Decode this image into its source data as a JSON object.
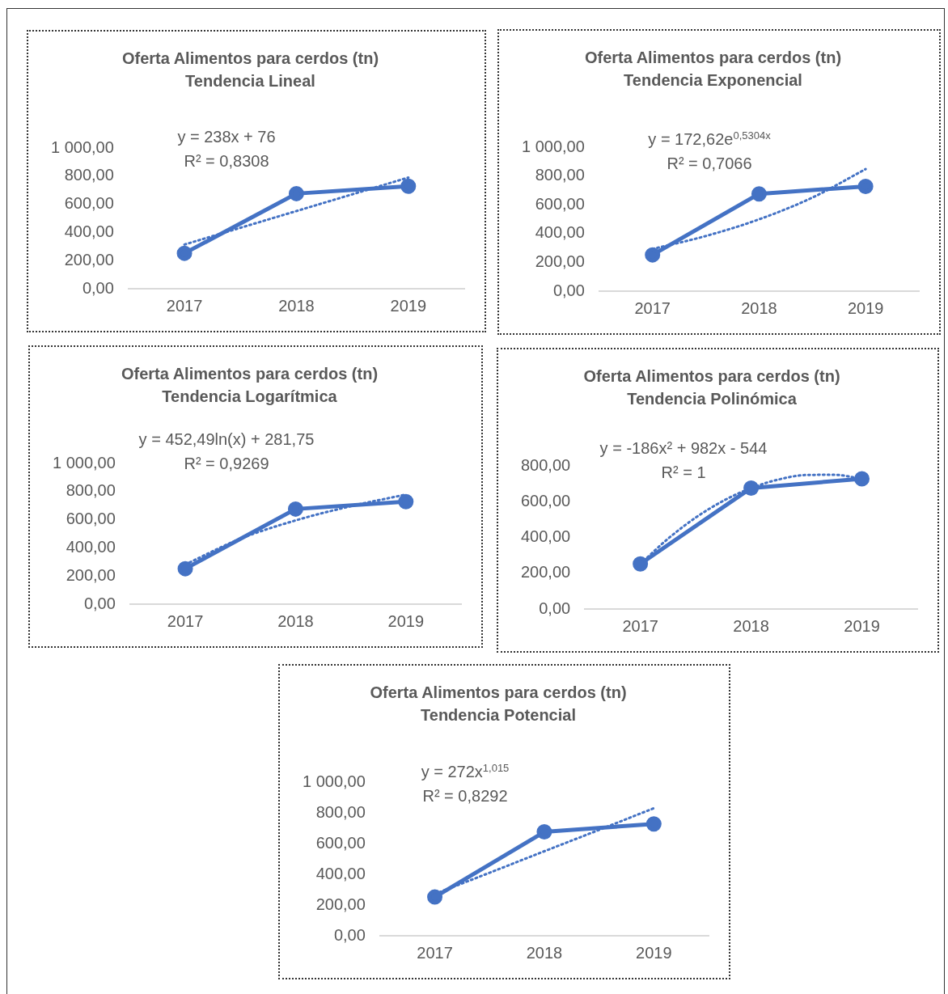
{
  "chart_data": [
    {
      "type": "line",
      "title": "Oferta Alimentos para cerdos (tn)",
      "subtitle": "Tendencia Lineal",
      "x": [
        2017,
        2018,
        2019
      ],
      "xlim": [
        2016.5,
        2019.5
      ],
      "xticks": [
        2017,
        2018,
        2019
      ],
      "ylim": [
        0,
        1000
      ],
      "yticks": [
        {
          "value": 0,
          "label": "0,00"
        },
        {
          "value": 200,
          "label": "200,00"
        },
        {
          "value": 400,
          "label": "400,00"
        },
        {
          "value": 600,
          "label": "600,00"
        },
        {
          "value": 800,
          "label": "800,00"
        },
        {
          "value": 1000,
          "label": "1 000,00"
        }
      ],
      "grid": false,
      "legend": false,
      "series": [
        {
          "color": "#4472c4",
          "marker": "circle",
          "line_style": "solid",
          "values": [
            252,
            676,
            728
          ]
        },
        {
          "color": "#4472c4",
          "marker": "none",
          "line_style": "dotted",
          "x": [
            2017,
            2018,
            2019
          ],
          "values": [
            314,
            552,
            790
          ]
        }
      ],
      "annotations": [
        "y = 238x + 76",
        "R² = 0,8308"
      ]
    },
    {
      "type": "line",
      "title": "Oferta Alimentos para cerdos (tn)",
      "subtitle": "Tendencia Exponencial",
      "x": [
        2017,
        2018,
        2019
      ],
      "xlim": [
        2016.5,
        2019.5
      ],
      "xticks": [
        2017,
        2018,
        2019
      ],
      "ylim": [
        0,
        1000
      ],
      "yticks": [
        {
          "value": 0,
          "label": "0,00"
        },
        {
          "value": 200,
          "label": "200,00"
        },
        {
          "value": 400,
          "label": "400,00"
        },
        {
          "value": 600,
          "label": "600,00"
        },
        {
          "value": 800,
          "label": "800,00"
        },
        {
          "value": 1000,
          "label": "1 000,00"
        }
      ],
      "grid": false,
      "legend": false,
      "series": [
        {
          "color": "#4472c4",
          "marker": "circle",
          "line_style": "solid",
          "values": [
            252,
            676,
            728
          ]
        },
        {
          "color": "#4472c4",
          "marker": "none",
          "line_style": "dotted",
          "x": [
            2017,
            2017.5,
            2018,
            2018.5,
            2019
          ],
          "values": [
            293,
            383,
            499,
            650,
            848
          ]
        }
      ],
      "annotations": [
        "y = 172,62e$^{0,5304x}$",
        "R² = 0,7066"
      ]
    },
    {
      "type": "line",
      "title": "Oferta Alimentos para cerdos (tn)",
      "subtitle": "Tendencia Logarítmica",
      "x": [
        2017,
        2018,
        2019
      ],
      "xlim": [
        2016.5,
        2019.5
      ],
      "xticks": [
        2017,
        2018,
        2019
      ],
      "ylim": [
        0,
        1000
      ],
      "yticks": [
        {
          "value": 0,
          "label": "0,00"
        },
        {
          "value": 200,
          "label": "200,00"
        },
        {
          "value": 400,
          "label": "400,00"
        },
        {
          "value": 600,
          "label": "600,00"
        },
        {
          "value": 800,
          "label": "800,00"
        },
        {
          "value": 1000,
          "label": "1 000,00"
        }
      ],
      "grid": false,
      "legend": false,
      "series": [
        {
          "color": "#4472c4",
          "marker": "circle",
          "line_style": "solid",
          "values": [
            252,
            676,
            728
          ]
        },
        {
          "color": "#4472c4",
          "marker": "none",
          "line_style": "dotted",
          "x": [
            2017,
            2017.5,
            2018,
            2018.5,
            2019
          ],
          "values": [
            282,
            465,
            595,
            696,
            779
          ]
        }
      ],
      "annotations": [
        "y = 452,49ln(x) + 281,75",
        "R² = 0,9269"
      ]
    },
    {
      "type": "line",
      "title": "Oferta Alimentos para cerdos (tn)",
      "subtitle": "Tendencia Polinómica",
      "x": [
        2017,
        2018,
        2019
      ],
      "xlim": [
        2016.5,
        2019.5
      ],
      "xticks": [
        2017,
        2018,
        2019
      ],
      "ylim": [
        0,
        800
      ],
      "yticks": [
        {
          "value": 0,
          "label": "0,00"
        },
        {
          "value": 200,
          "label": "200,00"
        },
        {
          "value": 400,
          "label": "400,00"
        },
        {
          "value": 600,
          "label": "600,00"
        },
        {
          "value": 800,
          "label": "800,00"
        }
      ],
      "grid": false,
      "legend": false,
      "series": [
        {
          "color": "#4472c4",
          "marker": "circle",
          "line_style": "solid",
          "values": [
            252,
            676,
            728
          ]
        },
        {
          "color": "#4472c4",
          "marker": "none",
          "line_style": "dotted",
          "x": [
            2017,
            2017.25,
            2017.5,
            2017.75,
            2018,
            2018.25,
            2018.5,
            2018.75,
            2019
          ],
          "values": [
            252,
            393,
            511,
            605,
            676,
            724,
            749,
            750,
            728
          ]
        }
      ],
      "annotations": [
        "y = -186x² + 982x - 544",
        "R² = 1"
      ]
    },
    {
      "type": "line",
      "title": "Oferta Alimentos para cerdos (tn)",
      "subtitle": "Tendencia Potencial",
      "x": [
        2017,
        2018,
        2019
      ],
      "xlim": [
        2016.5,
        2019.5
      ],
      "xticks": [
        2017,
        2018,
        2019
      ],
      "ylim": [
        0,
        1000
      ],
      "yticks": [
        {
          "value": 0,
          "label": "0,00"
        },
        {
          "value": 200,
          "label": "200,00"
        },
        {
          "value": 400,
          "label": "400,00"
        },
        {
          "value": 600,
          "label": "600,00"
        },
        {
          "value": 800,
          "label": "800,00"
        },
        {
          "value": 1000,
          "label": "1 000,00"
        }
      ],
      "grid": false,
      "legend": false,
      "series": [
        {
          "color": "#4472c4",
          "marker": "circle",
          "line_style": "solid",
          "values": [
            252,
            676,
            728
          ]
        },
        {
          "color": "#4472c4",
          "marker": "none",
          "line_style": "dotted",
          "x": [
            2017,
            2017.5,
            2018,
            2018.5,
            2019
          ],
          "values": [
            272,
            410,
            550,
            689,
            830
          ]
        }
      ],
      "annotations": [
        "y = 272x$^{1,015}$",
        "R² = 0,8292"
      ]
    }
  ]
}
